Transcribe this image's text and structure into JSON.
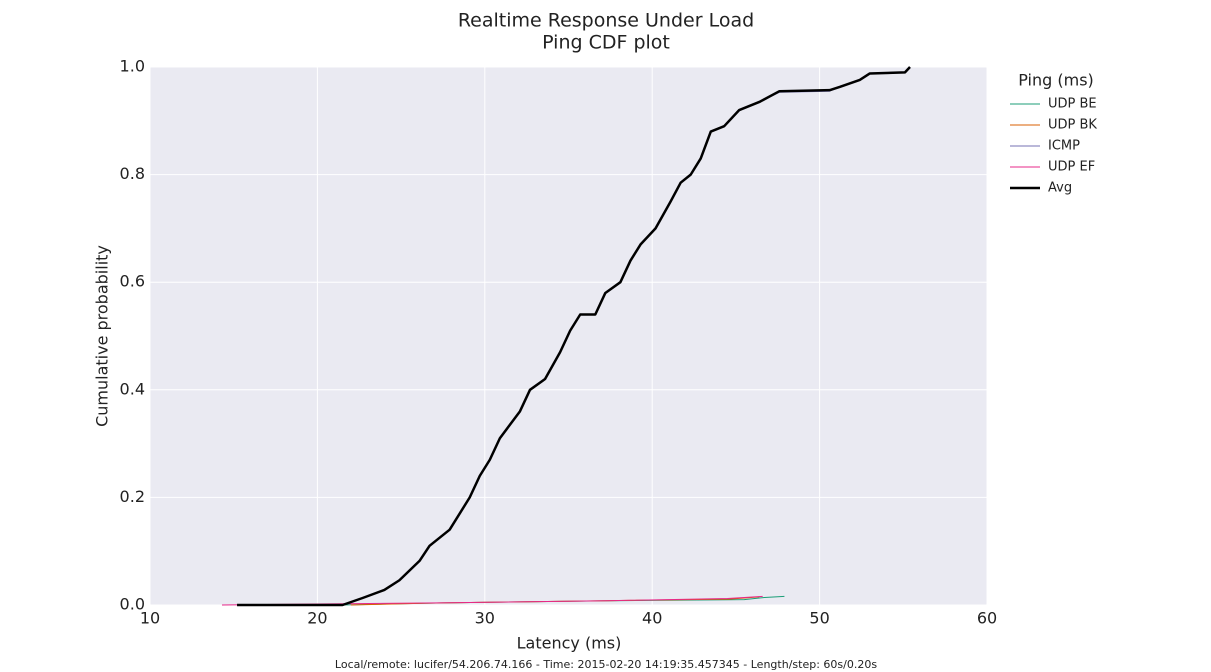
{
  "chart_data": {
    "type": "line",
    "title": "Realtime Response Under Load",
    "subtitle": "Ping CDF plot",
    "x_label": "Latency (ms)",
    "y_label": "Cumulative probability",
    "footer": "Local/remote: lucifer/54.206.74.166 - Time: 2015-02-20 14:19:35.457345 - Length/step: 60s/0.20s",
    "legend_title": "Ping (ms)",
    "legend": "outside right",
    "grid": true,
    "xlim": [
      10,
      60
    ],
    "xticks": [
      10,
      20,
      30,
      40,
      50,
      60
    ],
    "ylim": [
      0,
      1
    ],
    "yticks": [
      {
        "value": 0,
        "label": "0.0"
      },
      {
        "value": 0.2,
        "label": "0.2"
      },
      {
        "value": 0.4,
        "label": "0.4"
      },
      {
        "value": 0.6,
        "label": "0.6"
      },
      {
        "value": 0.8,
        "label": "0.8"
      },
      {
        "value": 1,
        "label": "1.0"
      }
    ],
    "series": [
      {
        "name": "UDP BE",
        "color": "#1b9e77",
        "width": 1,
        "x": [
          21.5,
          27.5,
          37.5,
          45.5,
          46.7,
          47.9
        ],
        "values": [
          0,
          0.004,
          0.008,
          0.01,
          0.014,
          0.016
        ]
      },
      {
        "name": "UDP BK",
        "color": "#d95f02",
        "width": 1,
        "x": [
          22,
          27.4,
          37.2,
          44.6,
          46.4
        ],
        "values": [
          0,
          0.004,
          0.008,
          0.011,
          0.015
        ]
      },
      {
        "name": "ICMP",
        "color": "#7570b3",
        "width": 1,
        "x": [
          15.2,
          21.5,
          22.7,
          24.0,
          24.9,
          26.1,
          26.7,
          27.9,
          29.1,
          29.7,
          30.3,
          30.9,
          31.5,
          32.1,
          32.7,
          33.6,
          34.5,
          35.1,
          35.7,
          36.6,
          37.2,
          38.1,
          38.7,
          39.3,
          40.2,
          41.1,
          41.7,
          42.3,
          42.9,
          43.5,
          44.3,
          45.2,
          46.4,
          47.6,
          50.6,
          51.2,
          52.4,
          53.0,
          55.1,
          55.4
        ],
        "values": [
          0,
          0,
          0.013,
          0.028,
          0.046,
          0.082,
          0.11,
          0.14,
          0.2,
          0.24,
          0.27,
          0.31,
          0.335,
          0.36,
          0.4,
          0.42,
          0.47,
          0.51,
          0.54,
          0.54,
          0.58,
          0.6,
          0.64,
          0.67,
          0.7,
          0.75,
          0.785,
          0.8,
          0.83,
          0.88,
          0.89,
          0.92,
          0.935,
          0.953,
          0.955,
          0.963,
          0.976,
          0.988,
          0.99,
          1
        ]
      },
      {
        "name": "UDP EF",
        "color": "#e7298a",
        "width": 1,
        "x": [
          14.3,
          27.3,
          37.3,
          44.5,
          46.6
        ],
        "values": [
          0,
          0.004,
          0.008,
          0.012,
          0.016
        ]
      },
      {
        "name": "Avg",
        "color": "#000000",
        "width": 2.5,
        "x": [
          15.2,
          21.5,
          22.7,
          24.0,
          24.9,
          26.1,
          26.7,
          27.9,
          29.1,
          29.7,
          30.3,
          30.9,
          31.5,
          32.1,
          32.7,
          33.6,
          34.5,
          35.1,
          35.7,
          36.6,
          37.2,
          38.1,
          38.7,
          39.3,
          40.2,
          41.1,
          41.7,
          42.3,
          42.9,
          43.5,
          44.3,
          45.2,
          46.4,
          47.6,
          50.6,
          51.2,
          52.4,
          53.0,
          55.1,
          55.4
        ],
        "values": [
          0,
          0,
          0.013,
          0.028,
          0.046,
          0.082,
          0.11,
          0.14,
          0.2,
          0.24,
          0.27,
          0.31,
          0.335,
          0.36,
          0.4,
          0.42,
          0.47,
          0.51,
          0.54,
          0.54,
          0.58,
          0.6,
          0.64,
          0.67,
          0.7,
          0.75,
          0.785,
          0.8,
          0.83,
          0.88,
          0.89,
          0.92,
          0.935,
          0.955,
          0.957,
          0.963,
          0.976,
          0.988,
          0.99,
          1
        ]
      }
    ]
  }
}
